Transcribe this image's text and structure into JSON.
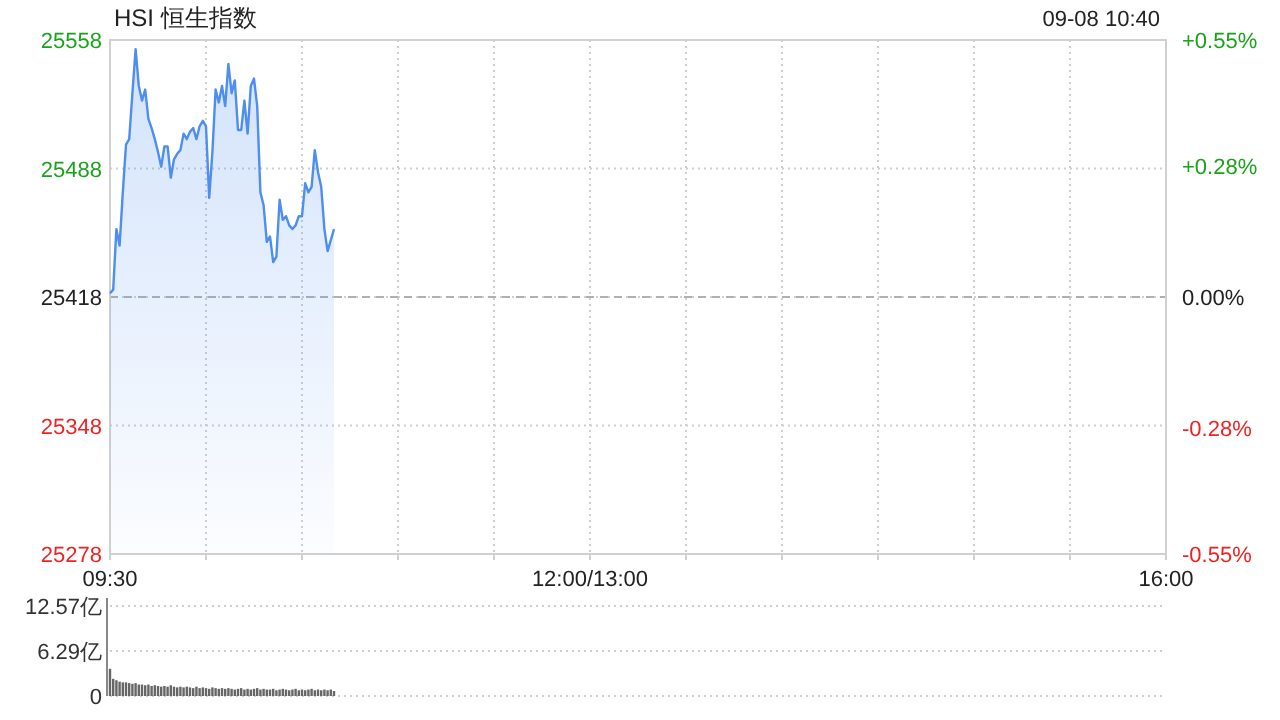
{
  "chart_data": [
    {
      "type": "area",
      "title": "HSI 恒生指数",
      "annotations": [
        "09-08 10:40"
      ],
      "categories": [
        "09:30",
        null,
        null,
        null,
        null,
        null,
        null,
        null,
        null,
        null,
        null,
        null,
        null,
        null,
        null,
        null,
        null,
        null,
        null,
        null,
        null,
        null,
        null,
        null,
        null,
        null,
        null,
        null,
        null,
        null,
        null,
        null,
        null,
        null,
        null,
        null,
        null,
        null,
        null,
        null,
        null,
        null,
        null,
        null,
        null,
        null,
        null,
        null,
        null,
        null,
        null,
        null,
        null,
        null,
        null,
        null,
        null,
        null,
        null,
        null,
        null,
        null,
        null,
        null,
        null,
        null,
        null,
        null,
        null,
        null,
        null,
        null,
        null,
        null,
        null,
        null,
        null,
        null,
        null,
        null,
        null,
        null,
        null,
        null,
        null,
        null,
        null,
        null,
        null,
        null,
        null,
        null,
        null,
        null,
        null,
        null,
        null,
        null,
        null,
        null,
        null,
        null,
        null,
        null,
        null,
        null,
        null,
        null,
        null,
        null,
        null,
        null,
        null,
        null,
        null,
        null,
        null,
        null,
        null,
        null,
        null,
        null,
        null,
        null,
        null,
        null,
        null,
        null,
        null,
        null,
        null,
        null,
        null,
        null,
        null,
        null,
        null,
        null,
        null,
        null,
        null,
        null,
        null,
        null,
        null,
        null,
        null,
        null,
        null,
        null,
        "12:00/13:00",
        null,
        null,
        null,
        null,
        null,
        null,
        null,
        null,
        null,
        null,
        null,
        null,
        null,
        null,
        null,
        null,
        null,
        null,
        null,
        null,
        null,
        null,
        null,
        null,
        null,
        null,
        null,
        null,
        null,
        null,
        null,
        null,
        null,
        null,
        null,
        null,
        null,
        null,
        null,
        null,
        null,
        null,
        null,
        null,
        null,
        null,
        null,
        null,
        null,
        null,
        null,
        null,
        null,
        null,
        null,
        null,
        null,
        null,
        null,
        null,
        null,
        null,
        null,
        null,
        null,
        null,
        null,
        null,
        null,
        null,
        null,
        null,
        null,
        null,
        null,
        null,
        null,
        null,
        null,
        null,
        null,
        null,
        null,
        null,
        null,
        null,
        null,
        null,
        null,
        null,
        null,
        null,
        null,
        null,
        null,
        null,
        null,
        null,
        null,
        null,
        null,
        null,
        null,
        null,
        null,
        null,
        null,
        null,
        null,
        null,
        null,
        null,
        null,
        null,
        null,
        null,
        null,
        null,
        null,
        null,
        null,
        null,
        null,
        null,
        null,
        null,
        null,
        null,
        null,
        null,
        null,
        null,
        null,
        null,
        null,
        null,
        null,
        null,
        null,
        null,
        null,
        null,
        null,
        null,
        null,
        null,
        null,
        null,
        null,
        null,
        null,
        null,
        null,
        null,
        null,
        null,
        null,
        null,
        null,
        null,
        null,
        null,
        null,
        null,
        null,
        null,
        null,
        null,
        null,
        null,
        null,
        null,
        null,
        null,
        null,
        null,
        null,
        null,
        null,
        "16:00"
      ],
      "series": [
        {
          "color": "#4d8ef0",
          "values": [
            25420,
            25422,
            25455,
            25446,
            25475,
            25501,
            25504,
            25529,
            25553,
            25533,
            25525,
            25531,
            25515,
            25510,
            25504,
            25497,
            25489,
            25500,
            25500,
            25483,
            25493,
            25496,
            25498,
            25507,
            25504,
            25508,
            25510,
            25504,
            25511,
            25514,
            25511,
            25472,
            25497,
            25531,
            25524,
            25533,
            25522,
            25545,
            25529,
            25536,
            25509,
            25509,
            25525,
            25507,
            25533,
            25537,
            25522,
            25475,
            25468,
            25448,
            25451,
            25437,
            25440,
            25471,
            25460,
            25462,
            25457,
            25455,
            25457,
            25462,
            25462,
            25480,
            25475,
            25478,
            25498,
            25486,
            25478,
            25455,
            25443,
            25449,
            25455,
            null,
            null,
            null,
            null,
            null,
            null,
            null,
            null,
            null,
            null,
            null,
            null,
            null,
            null,
            null,
            null,
            null,
            null,
            null,
            null,
            null,
            null,
            null,
            null,
            null,
            null,
            null,
            null,
            null,
            null,
            null,
            null,
            null,
            null,
            null,
            null,
            null,
            null,
            null,
            null,
            null,
            null,
            null,
            null,
            null,
            null,
            null,
            null,
            null,
            null,
            null,
            null,
            null,
            null,
            null,
            null,
            null,
            null,
            null,
            null,
            null,
            null,
            null,
            null,
            null,
            null,
            null,
            null,
            null,
            null,
            null,
            null,
            null,
            null,
            null,
            null,
            null,
            null,
            null,
            null,
            null,
            null,
            null,
            null,
            null,
            null,
            null,
            null,
            null,
            null,
            null,
            null,
            null,
            null,
            null,
            null,
            null,
            null,
            null,
            null,
            null,
            null,
            null,
            null,
            null,
            null,
            null,
            null,
            null,
            null,
            null,
            null,
            null,
            null,
            null,
            null,
            null,
            null,
            null,
            null,
            null,
            null,
            null,
            null,
            null,
            null,
            null,
            null,
            null,
            null,
            null,
            null,
            null,
            null,
            null,
            null,
            null,
            null,
            null,
            null,
            null,
            null,
            null,
            null,
            null,
            null,
            null,
            null,
            null,
            null,
            null,
            null,
            null,
            null,
            null,
            null,
            null,
            null,
            null,
            null,
            null,
            null,
            null,
            null,
            null,
            null,
            null,
            null,
            null,
            null,
            null,
            null,
            null,
            null,
            null,
            null,
            null,
            null,
            null,
            null,
            null,
            null,
            null,
            null,
            null,
            null,
            null,
            null,
            null,
            null,
            null,
            null,
            null,
            null,
            null,
            null,
            null,
            null,
            null,
            null,
            null,
            null,
            null,
            null,
            null,
            null,
            null,
            null,
            null,
            null,
            null,
            null,
            null,
            null,
            null,
            null,
            null,
            null,
            null,
            null,
            null,
            null,
            null,
            null,
            null,
            null,
            null,
            null,
            null,
            null,
            null,
            null,
            null,
            null,
            null,
            null,
            null,
            null,
            null,
            null,
            null,
            null,
            null,
            null,
            null,
            null,
            null,
            null,
            null,
            null,
            null,
            null,
            null,
            null,
            null,
            null,
            null,
            null,
            null,
            null
          ]
        }
      ],
      "ylim": [
        25278,
        25558
      ],
      "yticks": [
        25278,
        25348,
        25418,
        25488,
        25558
      ],
      "y2lim": [
        -0.55,
        0.55
      ],
      "y2ticks": [
        {
          "value": -0.55,
          "label": "-0.55%"
        },
        {
          "value": -0.28,
          "label": "-0.28%"
        },
        {
          "value": 0,
          "label": "0.00%"
        },
        {
          "value": 0.28,
          "label": "+0.28%"
        },
        {
          "value": 0.55,
          "label": "+0.55%"
        }
      ],
      "ref_lines": [
        {
          "axis": "y",
          "value": 25418,
          "color": "#b0b0b0",
          "line_style": "dashed"
        }
      ],
      "grid": true
    },
    {
      "type": "bar",
      "categories": [
        null,
        null,
        null,
        null,
        null,
        null,
        null,
        null,
        null,
        null,
        null,
        null,
        null,
        null,
        null,
        null,
        null,
        null,
        null,
        null,
        null,
        null,
        null,
        null,
        null,
        null,
        null,
        null,
        null,
        null,
        null,
        null,
        null,
        null,
        null,
        null,
        null,
        null,
        null,
        null,
        null,
        null,
        null,
        null,
        null,
        null,
        null,
        null,
        null,
        null,
        null,
        null,
        null,
        null,
        null,
        null,
        null,
        null,
        null,
        null,
        null,
        null,
        null,
        null,
        null,
        null,
        null,
        null,
        null,
        null,
        null,
        null,
        null,
        null,
        null,
        null,
        null,
        null,
        null,
        null,
        null,
        null,
        null,
        null,
        null,
        null,
        null,
        null,
        null,
        null,
        null,
        null,
        null,
        null,
        null,
        null,
        null,
        null,
        null,
        null,
        null,
        null,
        null,
        null,
        null,
        null,
        null,
        null,
        null,
        null,
        null,
        null,
        null,
        null,
        null,
        null,
        null,
        null,
        null,
        null,
        null,
        null,
        null,
        null,
        null,
        null,
        null,
        null,
        null,
        null,
        null,
        null,
        null,
        null,
        null,
        null,
        null,
        null,
        null,
        null,
        null,
        null,
        null,
        null,
        null,
        null,
        null,
        null,
        null,
        null,
        null,
        null,
        null,
        null,
        null,
        null,
        null,
        null,
        null,
        null,
        null,
        null,
        null,
        null,
        null,
        null,
        null,
        null,
        null,
        null,
        null,
        null,
        null,
        null,
        null,
        null,
        null,
        null,
        null,
        null,
        null,
        null,
        null,
        null,
        null,
        null,
        null,
        null,
        null,
        null,
        null,
        null,
        null,
        null,
        null,
        null,
        null,
        null,
        null,
        null,
        null,
        null,
        null,
        null,
        null,
        null,
        null,
        null,
        null,
        null,
        null,
        null,
        null,
        null,
        null,
        null,
        null,
        null,
        null,
        null,
        null,
        null,
        null,
        null,
        null,
        null,
        null,
        null,
        null,
        null,
        null,
        null,
        null,
        null,
        null,
        null,
        null,
        null,
        null,
        null,
        null,
        null,
        null,
        null,
        null,
        null,
        null,
        null,
        null,
        null,
        null,
        null,
        null,
        null,
        null,
        null,
        null,
        null,
        null,
        null,
        null,
        null,
        null,
        null,
        null,
        null,
        null,
        null,
        null,
        null,
        null,
        null,
        null,
        null,
        null,
        null,
        null,
        null,
        null,
        null,
        null,
        null,
        null,
        null,
        null,
        null,
        null,
        null,
        null,
        null,
        null,
        null,
        null,
        null,
        null,
        null,
        null,
        null,
        null,
        null,
        null,
        null,
        null,
        null,
        null,
        null,
        null,
        null,
        null,
        null,
        null,
        null,
        null,
        null,
        null,
        null,
        null,
        null,
        null,
        null,
        null,
        null,
        null,
        null,
        null,
        null,
        null,
        null,
        null,
        null,
        null
      ],
      "series": [
        {
          "color": "#666666",
          "values": [
            3.8,
            2.4,
            2.2,
            2.0,
            1.9,
            1.9,
            1.8,
            1.7,
            1.8,
            1.6,
            1.6,
            1.5,
            1.6,
            1.4,
            1.5,
            1.4,
            1.3,
            1.4,
            1.3,
            1.5,
            1.3,
            1.2,
            1.3,
            1.2,
            1.3,
            1.2,
            1.1,
            1.3,
            1.1,
            1.2,
            1.1,
            1.0,
            1.2,
            1.1,
            1.0,
            1.1,
            1.0,
            1.1,
            1.0,
            0.9,
            1.0,
            1.1,
            0.9,
            1.0,
            0.9,
            1.0,
            1.1,
            0.9,
            1.0,
            0.9,
            0.9,
            1.0,
            0.8,
            0.9,
            1.0,
            0.9,
            0.8,
            0.9,
            1.0,
            0.8,
            0.9,
            0.8,
            0.9,
            1.0,
            0.8,
            0.9,
            0.8,
            0.9,
            0.8,
            0.9,
            0.7,
            null,
            null,
            null,
            null,
            null,
            null,
            null,
            null,
            null,
            null,
            null,
            null,
            null,
            null,
            null,
            null,
            null,
            null,
            null,
            null,
            null,
            null,
            null,
            null,
            null,
            null,
            null,
            null,
            null,
            null,
            null,
            null,
            null,
            null,
            null,
            null,
            null,
            null,
            null,
            null,
            null,
            null,
            null,
            null,
            null,
            null,
            null,
            null,
            null,
            null,
            null,
            null,
            null,
            null,
            null,
            null,
            null,
            null,
            null,
            null,
            null,
            null,
            null,
            null,
            null,
            null,
            null,
            null,
            null,
            null,
            null,
            null,
            null,
            null,
            null,
            null,
            null,
            null,
            null,
            null,
            null,
            null,
            null,
            null,
            null,
            null,
            null,
            null,
            null,
            null,
            null,
            null,
            null,
            null,
            null,
            null,
            null,
            null,
            null,
            null,
            null,
            null,
            null,
            null,
            null,
            null,
            null,
            null,
            null,
            null,
            null,
            null,
            null,
            null,
            null,
            null,
            null,
            null,
            null,
            null,
            null,
            null,
            null,
            null,
            null,
            null,
            null,
            null,
            null,
            null,
            null,
            null,
            null,
            null,
            null,
            null,
            null,
            null,
            null,
            null,
            null,
            null,
            null,
            null,
            null,
            null,
            null,
            null,
            null,
            null,
            null,
            null,
            null,
            null,
            null,
            null,
            null,
            null,
            null,
            null,
            null,
            null,
            null,
            null,
            null,
            null,
            null,
            null,
            null,
            null,
            null,
            null,
            null,
            null,
            null,
            null,
            null,
            null,
            null,
            null,
            null,
            null,
            null,
            null,
            null,
            null,
            null,
            null,
            null,
            null,
            null,
            null,
            null,
            null,
            null,
            null,
            null,
            null,
            null,
            null,
            null,
            null,
            null,
            null,
            null,
            null,
            null,
            null,
            null,
            null,
            null,
            null,
            null,
            null,
            null,
            null,
            null,
            null,
            null,
            null,
            null,
            null,
            null,
            null,
            null,
            null,
            null,
            null,
            null,
            null,
            null,
            null,
            null,
            null,
            null,
            null,
            null,
            null,
            null,
            null,
            null,
            null,
            null,
            null,
            null,
            null,
            null,
            null,
            null,
            null,
            null,
            null,
            null,
            null,
            null,
            null,
            null,
            null,
            null,
            null
          ]
        }
      ],
      "ylim": [
        0,
        12.57
      ],
      "yticks": [
        0,
        {
          "value": 6.29,
          "label": "6.29亿"
        },
        {
          "value": 12.57,
          "label": "12.57亿"
        }
      ],
      "tick_labels": "y",
      "grid": "y"
    }
  ]
}
